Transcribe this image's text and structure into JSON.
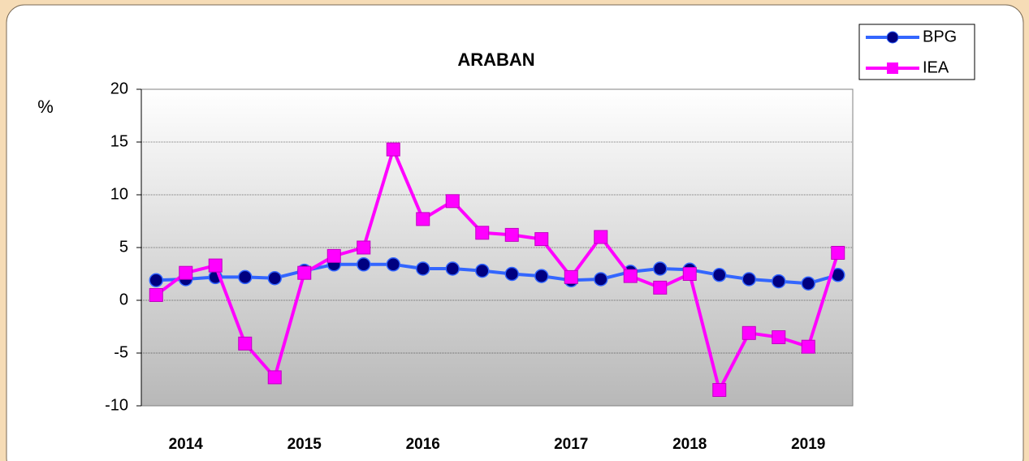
{
  "chart_data": {
    "type": "line",
    "title": "ARABAN",
    "y_label": "%",
    "categories": [
      null,
      "2014",
      null,
      null,
      null,
      "2015",
      null,
      null,
      null,
      "2016",
      null,
      null,
      null,
      null,
      "2017",
      null,
      null,
      null,
      "2018",
      null,
      null,
      null,
      "2019",
      null
    ],
    "series": [
      {
        "name": "BPG",
        "color": "#3366ff",
        "marker_color": "#000080",
        "marker": "circle",
        "values": [
          1.9,
          2.0,
          2.2,
          2.2,
          2.1,
          2.8,
          3.4,
          3.4,
          3.4,
          3.0,
          3.0,
          2.8,
          2.5,
          2.3,
          1.9,
          2.0,
          2.7,
          3.0,
          2.9,
          2.4,
          2.0,
          1.8,
          1.6,
          2.4
        ]
      },
      {
        "name": "IEA",
        "color": "#ff00ff",
        "marker_color": "#ff00ff",
        "marker": "square",
        "values": [
          0.5,
          2.6,
          3.3,
          -4.1,
          -7.3,
          2.6,
          4.2,
          5.0,
          14.3,
          7.7,
          9.4,
          6.4,
          6.2,
          5.8,
          2.2,
          6.0,
          2.3,
          1.2,
          2.5,
          -8.5,
          -3.1,
          -3.5,
          -4.4,
          4.5
        ]
      }
    ],
    "ylim": [
      -10,
      20
    ],
    "yticks": [
      -10,
      -5,
      0,
      5,
      10,
      15,
      20
    ],
    "grid": true,
    "legend": "top-right"
  }
}
